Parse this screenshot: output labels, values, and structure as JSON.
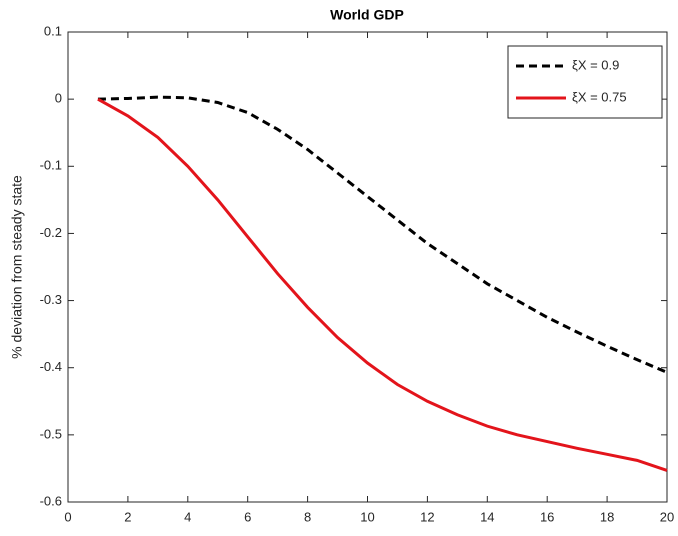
{
  "chart_data": {
    "type": "line",
    "title": "World GDP",
    "y_label": "% deviation from steady state",
    "x": [
      1,
      2,
      3,
      4,
      5,
      6,
      7,
      8,
      9,
      10,
      11,
      12,
      13,
      14,
      15,
      16,
      17,
      18,
      19,
      20
    ],
    "series": [
      {
        "name": "ξX = 0.9",
        "color": "#000000",
        "dash": true,
        "values": [
          0,
          0.001,
          0.003,
          0.002,
          -0.005,
          -0.02,
          -0.045,
          -0.075,
          -0.11,
          -0.145,
          -0.18,
          -0.215,
          -0.245,
          -0.275,
          -0.3,
          -0.325,
          -0.347,
          -0.368,
          -0.388,
          -0.407
        ]
      },
      {
        "name": "ξX = 0.75",
        "color": "#e3141b",
        "dash": false,
        "values": [
          0,
          -0.025,
          -0.057,
          -0.1,
          -0.15,
          -0.205,
          -0.26,
          -0.31,
          -0.355,
          -0.393,
          -0.425,
          -0.45,
          -0.47,
          -0.487,
          -0.5,
          -0.51,
          -0.52,
          -0.529,
          -0.538,
          -0.553
        ]
      }
    ],
    "xlim": [
      0,
      20
    ],
    "xticks": [
      0,
      2,
      4,
      6,
      8,
      10,
      12,
      14,
      16,
      18,
      20
    ],
    "ylim": [
      -0.6,
      0.1
    ],
    "yticks": [
      -0.6,
      -0.5,
      -0.4,
      -0.3,
      -0.2,
      -0.1,
      0,
      0.1
    ],
    "legend": "top-right"
  }
}
